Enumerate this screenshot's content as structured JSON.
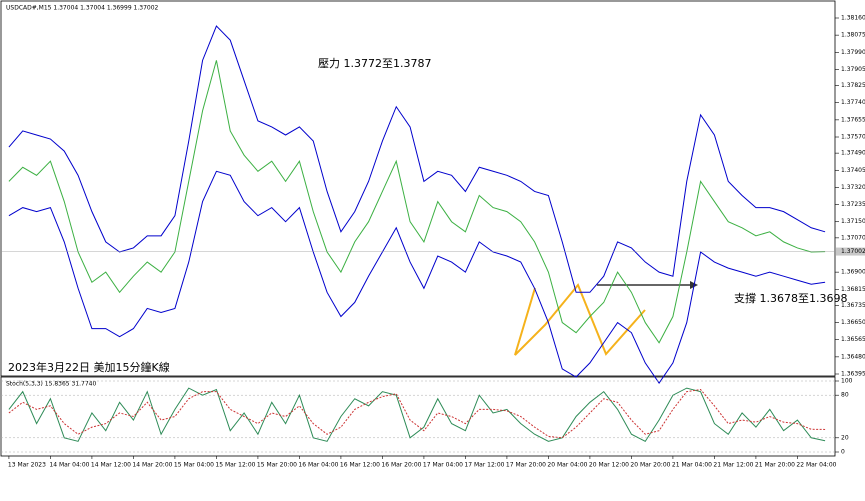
{
  "chart_data": [
    {
      "type": "line",
      "title": "USDCAD#,M15  1.37004 1.37004 1.36999 1.37002",
      "subtitle": "2023年3月22日 美加15分鐘K線",
      "annotations": [
        "壓力 1.3772至1.3787",
        "支撐 1.3678至1.3698"
      ],
      "ylim": [
        1.36395,
        1.3816
      ],
      "yticks": [
        {
          "value": 1.3816,
          "label": "1.38160"
        },
        {
          "value": 1.38075,
          "label": "1.38075"
        },
        {
          "value": 1.3799,
          "label": "1.37990"
        },
        {
          "value": 1.37905,
          "label": "1.37905"
        },
        {
          "value": 1.37825,
          "label": "1.37825"
        },
        {
          "value": 1.3774,
          "label": "1.37740"
        },
        {
          "value": 1.37655,
          "label": "1.37655"
        },
        {
          "value": 1.3757,
          "label": "1.37570"
        },
        {
          "value": 1.3749,
          "label": "1.37490"
        },
        {
          "value": 1.37405,
          "label": "1.37405"
        },
        {
          "value": 1.3732,
          "label": "1.37320"
        },
        {
          "value": 1.37235,
          "label": "1.37235"
        },
        {
          "value": 1.3715,
          "label": "1.37150"
        },
        {
          "value": 1.3707,
          "label": "1.37070"
        },
        {
          "value": 1.369,
          "label": "1.36900"
        },
        {
          "value": 1.36815,
          "label": "1.36815"
        },
        {
          "value": 1.36735,
          "label": "1.36735"
        },
        {
          "value": 1.3665,
          "label": "1.36650"
        },
        {
          "value": 1.36565,
          "label": "1.36565"
        },
        {
          "value": 1.3648,
          "label": "1.36480"
        },
        {
          "value": 1.36395,
          "label": "1.36395"
        }
      ],
      "last_price": {
        "value": 1.37002,
        "label": "1.37002"
      },
      "series": [
        {
          "color": "#3cb043",
          "values": [
            1.3735,
            1.3742,
            1.3738,
            1.3745,
            1.3725,
            1.37,
            1.3685,
            1.369,
            1.368,
            1.3688,
            1.3695,
            1.369,
            1.37,
            1.3735,
            1.377,
            1.3795,
            1.376,
            1.3748,
            1.374,
            1.3745,
            1.3735,
            1.3745,
            1.372,
            1.37,
            1.369,
            1.3705,
            1.3715,
            1.373,
            1.3745,
            1.3715,
            1.3705,
            1.3725,
            1.3715,
            1.371,
            1.3728,
            1.3722,
            1.372,
            1.3715,
            1.3705,
            1.369,
            1.3665,
            1.366,
            1.3668,
            1.3675,
            1.369,
            1.368,
            1.3665,
            1.3655,
            1.3668,
            1.37,
            1.3735,
            1.3725,
            1.3715,
            1.3712,
            1.3708,
            1.371,
            1.3705,
            1.3702,
            1.37,
            1.37002
          ]
        },
        {
          "color": "#0000cc",
          "values": [
            1.3752,
            1.376,
            1.3758,
            1.3756,
            1.375,
            1.3738,
            1.372,
            1.3705,
            1.37,
            1.3702,
            1.3708,
            1.3708,
            1.3718,
            1.3755,
            1.3795,
            1.3812,
            1.3805,
            1.3785,
            1.3765,
            1.3762,
            1.3758,
            1.3762,
            1.3755,
            1.373,
            1.371,
            1.372,
            1.3735,
            1.3755,
            1.3772,
            1.3762,
            1.3735,
            1.374,
            1.3738,
            1.373,
            1.3742,
            1.374,
            1.3738,
            1.3735,
            1.373,
            1.3728,
            1.3705,
            1.368,
            1.368,
            1.3688,
            1.3705,
            1.3702,
            1.3695,
            1.369,
            1.3688,
            1.3735,
            1.3768,
            1.3758,
            1.3735,
            1.3728,
            1.3722,
            1.3722,
            1.372,
            1.3716,
            1.3712,
            1.371
          ]
        },
        {
          "color": "#0000cc",
          "values": [
            1.3718,
            1.3722,
            1.372,
            1.3722,
            1.3705,
            1.3682,
            1.3662,
            1.3662,
            1.3658,
            1.3662,
            1.3672,
            1.367,
            1.3672,
            1.3695,
            1.3725,
            1.374,
            1.3738,
            1.3725,
            1.3718,
            1.3722,
            1.3715,
            1.3722,
            1.37,
            1.368,
            1.3668,
            1.3675,
            1.3688,
            1.37,
            1.3712,
            1.3695,
            1.3682,
            1.3698,
            1.3695,
            1.369,
            1.3705,
            1.37,
            1.3698,
            1.3695,
            1.3682,
            1.3665,
            1.3642,
            1.3638,
            1.3645,
            1.3655,
            1.3665,
            1.366,
            1.3645,
            1.3635,
            1.3645,
            1.3665,
            1.37,
            1.3695,
            1.3692,
            1.369,
            1.3688,
            1.369,
            1.3688,
            1.3686,
            1.3684,
            1.3685
          ]
        }
      ]
    },
    {
      "type": "line",
      "title": "Stoch(5,3,3) 15.8365 31.7740",
      "ylim": [
        0,
        100
      ],
      "yticks": [
        100,
        80,
        20,
        0
      ],
      "categories": [
        "13 Mar 2023",
        null,
        null,
        "14 Mar 04:00",
        null,
        null,
        "14 Mar 12:00",
        null,
        null,
        "14 Mar 20:00",
        null,
        null,
        "15 Mar 04:00",
        null,
        null,
        "15 Mar 12:00",
        null,
        null,
        "15 Mar 20:00",
        null,
        null,
        "16 Mar 04:00",
        null,
        null,
        "16 Mar 12:00",
        null,
        null,
        "16 Mar 20:00",
        null,
        null,
        "17 Mar 04:00",
        null,
        null,
        "17 Mar 12:00",
        null,
        null,
        "17 Mar 20:00",
        null,
        null,
        "20 Mar 04:00",
        null,
        null,
        "20 Mar 12:00",
        null,
        null,
        "20 Mar 20:00",
        null,
        null,
        "21 Mar 04:00",
        null,
        null,
        "21 Mar 12:00",
        null,
        null,
        "21 Mar 20:00",
        null,
        null,
        "22 Mar 04:00",
        null,
        null
      ],
      "series": [
        {
          "color": "#2e8b57",
          "values": [
            60,
            85,
            40,
            75,
            20,
            15,
            55,
            30,
            70,
            45,
            85,
            25,
            60,
            90,
            80,
            88,
            30,
            55,
            25,
            70,
            40,
            80,
            20,
            15,
            50,
            75,
            65,
            85,
            80,
            20,
            35,
            75,
            40,
            30,
            80,
            55,
            60,
            40,
            25,
            15,
            20,
            50,
            70,
            85,
            60,
            25,
            15,
            45,
            80,
            90,
            85,
            40,
            25,
            55,
            35,
            60,
            30,
            45,
            20,
            15.8365
          ]
        },
        {
          "color": "#cc3333",
          "values": [
            55,
            70,
            60,
            65,
            40,
            25,
            35,
            40,
            55,
            50,
            70,
            45,
            50,
            75,
            85,
            85,
            60,
            50,
            40,
            55,
            50,
            65,
            40,
            25,
            35,
            60,
            70,
            78,
            82,
            45,
            30,
            55,
            50,
            40,
            60,
            60,
            58,
            50,
            35,
            22,
            20,
            35,
            55,
            75,
            70,
            45,
            25,
            30,
            60,
            85,
            88,
            65,
            40,
            45,
            42,
            50,
            42,
            40,
            32,
            31.774
          ]
        }
      ]
    }
  ]
}
